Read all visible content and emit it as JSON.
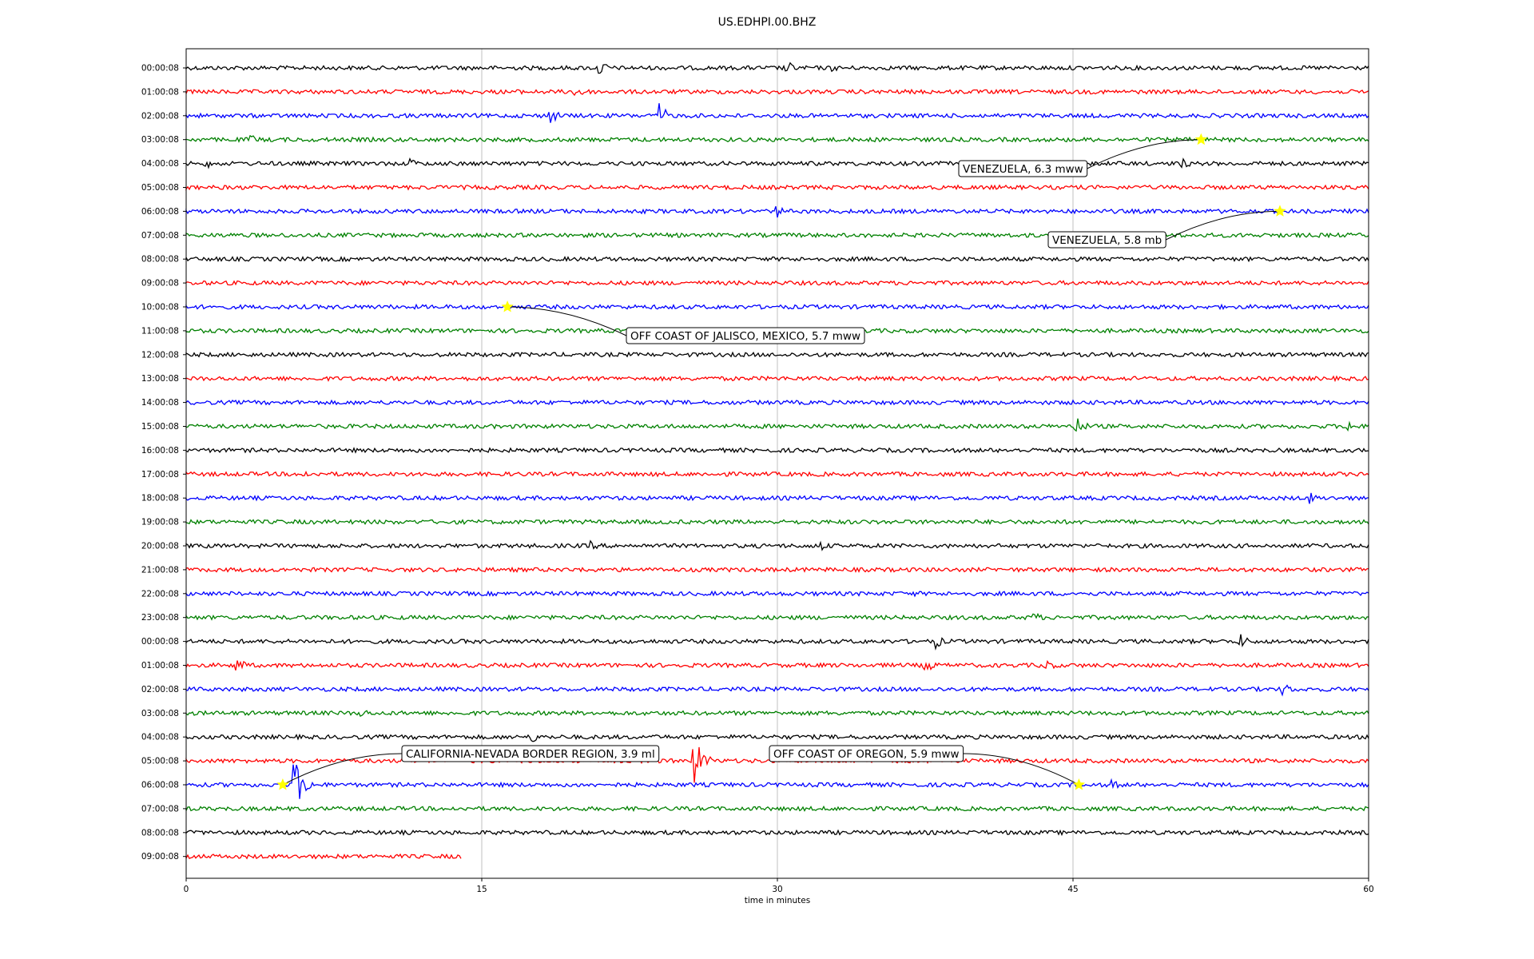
{
  "chart_data": {
    "type": "line",
    "title": "US.EDHPI.00.BHZ",
    "xlabel": "time in minutes",
    "ylabel": "",
    "xlim": [
      0,
      60
    ],
    "xticks": [
      "0",
      "15",
      "30",
      "45",
      "60"
    ],
    "grid": "vertical lines at 15, 30, 45",
    "color_cycle": [
      "#000000",
      "#ff0000",
      "#0000ff",
      "#008000"
    ],
    "row_labels": [
      "00:00:08",
      "01:00:08",
      "02:00:08",
      "03:00:08",
      "04:00:08",
      "05:00:08",
      "06:00:08",
      "07:00:08",
      "08:00:08",
      "09:00:08",
      "10:00:08",
      "11:00:08",
      "12:00:08",
      "13:00:08",
      "14:00:08",
      "15:00:08",
      "16:00:08",
      "17:00:08",
      "18:00:08",
      "19:00:08",
      "20:00:08",
      "21:00:08",
      "22:00:08",
      "23:00:08",
      "00:00:08",
      "01:00:08",
      "02:00:08",
      "03:00:08",
      "04:00:08",
      "05:00:08",
      "06:00:08",
      "07:00:08",
      "08:00:08",
      "09:00:08"
    ],
    "last_row_end_minutes": 14,
    "events": [
      {
        "label": "VENEZUELA, 6.3 mww",
        "row": 3,
        "minute": 51.5
      },
      {
        "label": "VENEZUELA, 5.8 mb",
        "row": 6,
        "minute": 55.5
      },
      {
        "label": "OFF COAST OF JALISCO, MEXICO, 5.7 mww",
        "row": 10,
        "minute": 16.3
      },
      {
        "label": "CALIFORNIA-NEVADA BORDER REGION, 3.9 ml",
        "row": 30,
        "minute": 4.9
      },
      {
        "label": "OFF COAST OF OREGON, 5.9 mww",
        "row": 30,
        "minute": 45.3
      }
    ],
    "event_marker_color": "#ffff00",
    "bursts": [
      {
        "row": 0,
        "minute": 21.0,
        "amp": 10
      },
      {
        "row": 0,
        "minute": 30.5,
        "amp": 9
      },
      {
        "row": 0,
        "minute": 32.8,
        "amp": 5
      },
      {
        "row": 1,
        "minute": 19.8,
        "amp": 12
      },
      {
        "row": 1,
        "minute": 16.5,
        "amp": 6
      },
      {
        "row": 2,
        "minute": 18.5,
        "amp": 10
      },
      {
        "row": 2,
        "minute": 24.0,
        "amp": 16
      },
      {
        "row": 3,
        "minute": 3.3,
        "amp": 7
      },
      {
        "row": 4,
        "minute": 1.0,
        "amp": 7
      },
      {
        "row": 4,
        "minute": 11.3,
        "amp": 8
      },
      {
        "row": 4,
        "minute": 50.5,
        "amp": 8
      },
      {
        "row": 6,
        "minute": 30.0,
        "amp": 8
      },
      {
        "row": 15,
        "minute": 45.1,
        "amp": 15
      },
      {
        "row": 15,
        "minute": 59.0,
        "amp": 9
      },
      {
        "row": 17,
        "minute": 6.0,
        "amp": 5
      },
      {
        "row": 18,
        "minute": 57.0,
        "amp": 8
      },
      {
        "row": 20,
        "minute": 20.5,
        "amp": 7
      },
      {
        "row": 20,
        "minute": 32.2,
        "amp": 7
      },
      {
        "row": 21,
        "minute": 20.3,
        "amp": 7
      },
      {
        "row": 22,
        "minute": 37.0,
        "amp": 4
      },
      {
        "row": 23,
        "minute": 43.0,
        "amp": 8
      },
      {
        "row": 24,
        "minute": 38.0,
        "amp": 10
      },
      {
        "row": 24,
        "minute": 53.5,
        "amp": 10
      },
      {
        "row": 25,
        "minute": 2.5,
        "amp": 13
      },
      {
        "row": 25,
        "minute": 37.5,
        "amp": 12
      },
      {
        "row": 25,
        "minute": 43.5,
        "amp": 11
      },
      {
        "row": 26,
        "minute": 55.7,
        "amp": 9
      },
      {
        "row": 27,
        "minute": 8.8,
        "amp": 8
      },
      {
        "row": 28,
        "minute": 17.5,
        "amp": 9
      },
      {
        "row": 29,
        "minute": 25.8,
        "amp": 30
      },
      {
        "row": 30,
        "minute": 5.5,
        "amp": 35
      },
      {
        "row": 30,
        "minute": 47.0,
        "amp": 7
      }
    ]
  }
}
